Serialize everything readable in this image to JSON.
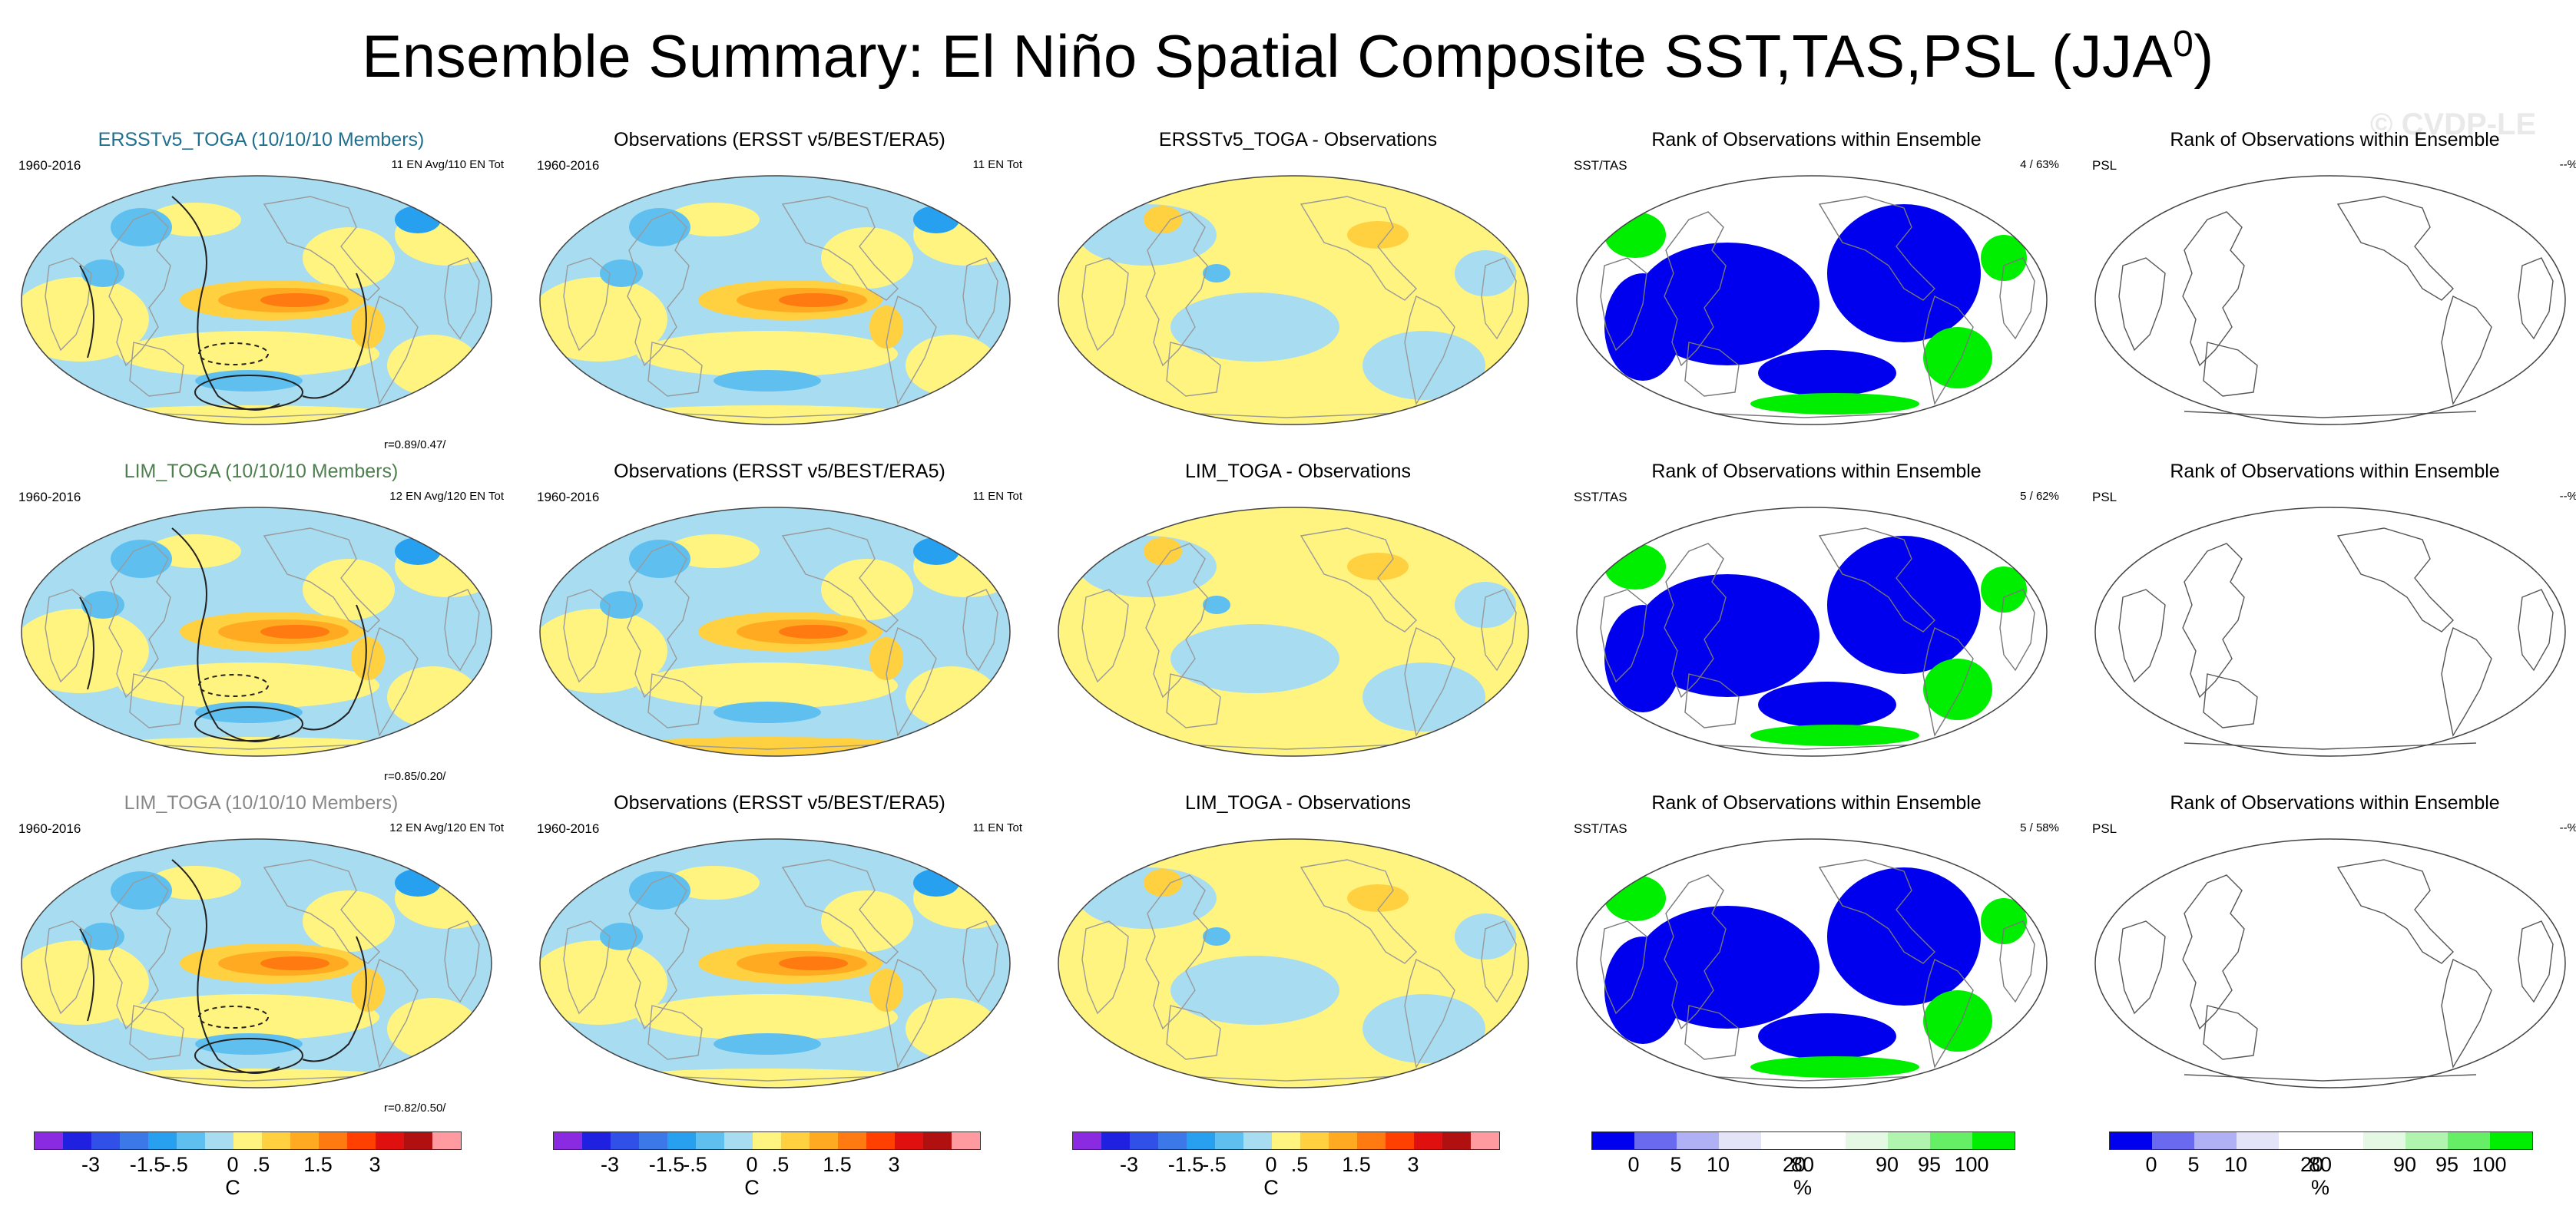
{
  "title": "Ensemble Summary: El Niño Spatial Composite SST,TAS,PSL (JJA",
  "title_sup": "0",
  "title_close": ")",
  "watermark": "© CVDP-LE",
  "chart_data": {
    "type": "heatmap",
    "rows": [
      {
        "panels": [
          {
            "kind": "anom",
            "title": "ERSSTv5_TOGA (10/10/10 Members)",
            "title_color": "#1f6f8f",
            "left": "1960-2016",
            "right": "11 EN Avg/110 EN Tot",
            "corr": "r=0.89/0.47/",
            "contours": true
          },
          {
            "kind": "anom",
            "title": "Observations (ERSST v5/BEST/ERA5)",
            "title_color": "#000000",
            "left": "1960-2016",
            "right": "11 EN Tot",
            "corr": "",
            "contours": false
          },
          {
            "kind": "diff",
            "title": "ERSSTv5_TOGA - Observations",
            "title_color": "#000000",
            "left": "",
            "right": "",
            "corr": "",
            "contours": false
          },
          {
            "kind": "rank",
            "title": "Rank of Observations within Ensemble",
            "title_color": "#000000",
            "left": "SST/TAS",
            "right": "4 /  63%",
            "corr": ""
          },
          {
            "kind": "blank",
            "title": "Rank of Observations within Ensemble",
            "title_color": "#000000",
            "left": "PSL",
            "right": "--%",
            "corr": ""
          }
        ]
      },
      {
        "panels": [
          {
            "kind": "anom",
            "title": "LIM_TOGA (10/10/10 Members)",
            "title_color": "#4f7f4f",
            "left": "1960-2016",
            "right": "12 EN Avg/120 EN Tot",
            "corr": "r=0.85/0.20/",
            "contours": true
          },
          {
            "kind": "anom",
            "title": "Observations (ERSST v5/BEST/ERA5)",
            "title_color": "#000000",
            "left": "1960-2016",
            "right": "11 EN Tot",
            "corr": "",
            "contours": false
          },
          {
            "kind": "diff",
            "title": "LIM_TOGA - Observations",
            "title_color": "#000000",
            "left": "",
            "right": "",
            "corr": "",
            "contours": false
          },
          {
            "kind": "rank",
            "title": "Rank of Observations within Ensemble",
            "title_color": "#000000",
            "left": "SST/TAS",
            "right": "5 /  62%",
            "corr": ""
          },
          {
            "kind": "blank",
            "title": "Rank of Observations within Ensemble",
            "title_color": "#000000",
            "left": "PSL",
            "right": "--%",
            "corr": ""
          }
        ]
      },
      {
        "panels": [
          {
            "kind": "anom",
            "title": "LIM_TOGA (10/10/10 Members)",
            "title_color": "#888888",
            "left": "1960-2016",
            "right": "12 EN Avg/120 EN Tot",
            "corr": "r=0.82/0.50/",
            "contours": true
          },
          {
            "kind": "anom",
            "title": "Observations (ERSST v5/BEST/ERA5)",
            "title_color": "#000000",
            "left": "1960-2016",
            "right": "11 EN Tot",
            "corr": "",
            "contours": false
          },
          {
            "kind": "diff",
            "title": "LIM_TOGA - Observations",
            "title_color": "#000000",
            "left": "",
            "right": "",
            "corr": "",
            "contours": false
          },
          {
            "kind": "rank",
            "title": "Rank of Observations within Ensemble",
            "title_color": "#000000",
            "left": "SST/TAS",
            "right": "5 /  58%",
            "corr": ""
          },
          {
            "kind": "blank",
            "title": "Rank of Observations within Ensemble",
            "title_color": "#000000",
            "left": "PSL",
            "right": "--%",
            "corr": ""
          }
        ]
      }
    ],
    "colorbars": [
      {
        "kind": "temp",
        "unit": "C",
        "ticks": [
          "-3",
          "-1.5",
          "-.5",
          "0",
          ".5",
          "1.5",
          "3"
        ],
        "colors": [
          "#8a2be2",
          "#2020e0",
          "#3050e8",
          "#3c78e8",
          "#28a0f0",
          "#5fc0f0",
          "#a8dcf0",
          "#fff480",
          "#ffd040",
          "#ffaa20",
          "#ff7a10",
          "#ff4000",
          "#e01010",
          "#b01010",
          "#ff9aa0"
        ]
      },
      {
        "kind": "temp",
        "unit": "C",
        "ticks": [
          "-3",
          "-1.5",
          "-.5",
          "0",
          ".5",
          "1.5",
          "3"
        ],
        "colors": [
          "#8a2be2",
          "#2020e0",
          "#3050e8",
          "#3c78e8",
          "#28a0f0",
          "#5fc0f0",
          "#a8dcf0",
          "#fff480",
          "#ffd040",
          "#ffaa20",
          "#ff7a10",
          "#ff4000",
          "#e01010",
          "#b01010",
          "#ff9aa0"
        ]
      },
      {
        "kind": "temp",
        "unit": "C",
        "ticks": [
          "-3",
          "-1.5",
          "-.5",
          "0",
          ".5",
          "1.5",
          "3"
        ],
        "colors": [
          "#8a2be2",
          "#2020e0",
          "#3050e8",
          "#3c78e8",
          "#28a0f0",
          "#5fc0f0",
          "#a8dcf0",
          "#fff480",
          "#ffd040",
          "#ffaa20",
          "#ff7a10",
          "#ff4000",
          "#e01010",
          "#b01010",
          "#ff9aa0"
        ]
      },
      {
        "kind": "rank",
        "unit": "%",
        "ticks": [
          "0",
          "5",
          "10",
          "20",
          "80",
          "90",
          "95",
          "100"
        ],
        "colors": [
          "#0000ee",
          "#6a6af0",
          "#b0b0f4",
          "#e4e4f8",
          "#ffffff",
          "#ffffff",
          "#e4f8e4",
          "#b0f4b0",
          "#66ee66",
          "#00ee00"
        ]
      },
      {
        "kind": "rank",
        "unit": "%",
        "ticks": [
          "0",
          "5",
          "10",
          "20",
          "80",
          "90",
          "95",
          "100"
        ],
        "colors": [
          "#0000ee",
          "#6a6af0",
          "#b0b0f4",
          "#e4e4f8",
          "#ffffff",
          "#ffffff",
          "#e4f8e4",
          "#b0f4b0",
          "#66ee66",
          "#00ee00"
        ]
      }
    ]
  }
}
